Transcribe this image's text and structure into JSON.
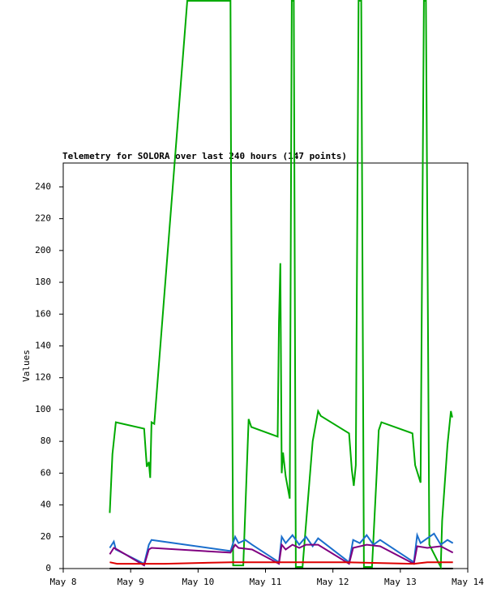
{
  "chart_data": {
    "type": "line",
    "title": "Telemetry for SOLORA over last 240 hours (147 points)",
    "ylabel": "Values",
    "xlim": [
      0,
      6
    ],
    "ylim": [
      0,
      255
    ],
    "xticks": [
      {
        "value": 0,
        "label": "May 8"
      },
      {
        "value": 1,
        "label": "May 9"
      },
      {
        "value": 2,
        "label": "May 10"
      },
      {
        "value": 3,
        "label": "May 11"
      },
      {
        "value": 4,
        "label": "May 12"
      },
      {
        "value": 5,
        "label": "May 13"
      },
      {
        "value": 6,
        "label": "May 14"
      }
    ],
    "yticks": [
      0,
      20,
      40,
      60,
      80,
      100,
      120,
      140,
      160,
      180,
      200,
      220,
      240
    ],
    "series": [
      {
        "color": "#000000",
        "x": [
          0.69,
          5.78
        ],
        "values": [
          0,
          0
        ]
      },
      {
        "color": "#00aa00",
        "x": [
          0.69,
          0.73,
          0.78,
          1.2,
          1.24,
          1.27,
          1.29,
          1.31,
          1.35,
          1.84,
          2.48,
          2.49,
          2.52,
          2.67,
          2.75,
          2.79,
          3.18,
          3.2,
          3.22,
          3.24,
          3.26,
          3.3,
          3.36,
          3.39,
          3.42,
          3.45,
          3.55,
          3.7,
          3.78,
          3.82,
          4.24,
          4.28,
          4.31,
          4.34,
          4.38,
          4.42,
          4.46,
          4.58,
          4.65,
          4.68,
          4.72,
          5.18,
          5.22,
          5.3,
          5.35,
          5.38,
          5.43,
          5.55,
          5.6,
          5.62,
          5.7,
          5.75,
          5.77
        ],
        "values": [
          35,
          72,
          92,
          88,
          64,
          67,
          57,
          92,
          91,
          357,
          357,
          240,
          2,
          2,
          94,
          89,
          83,
          155,
          192,
          60,
          73,
          58,
          44,
          357,
          357,
          1,
          1,
          80,
          99,
          96,
          85,
          62,
          52,
          65,
          357,
          357,
          1,
          1,
          60,
          87,
          92,
          85,
          65,
          54,
          357,
          357,
          15,
          5,
          1,
          30,
          78,
          99,
          95
        ]
      },
      {
        "color": "#1a6ecc",
        "x": [
          0.69,
          0.75,
          0.78,
          1.2,
          1.27,
          1.31,
          2.48,
          2.55,
          2.6,
          2.7,
          2.8,
          3.2,
          3.24,
          3.3,
          3.4,
          3.5,
          3.6,
          3.7,
          3.78,
          4.24,
          4.3,
          4.4,
          4.5,
          4.6,
          4.7,
          5.2,
          5.25,
          5.3,
          5.4,
          5.5,
          5.6,
          5.7,
          5.78
        ],
        "values": [
          13,
          17,
          12,
          3,
          15,
          18,
          11,
          20,
          16,
          18,
          15,
          4,
          20,
          16,
          21,
          15,
          20,
          14,
          19,
          4,
          18,
          16,
          21,
          15,
          18,
          4,
          21,
          16,
          19,
          22,
          15,
          18,
          16
        ]
      },
      {
        "color": "#800080",
        "x": [
          0.69,
          0.75,
          0.8,
          1.2,
          1.27,
          1.31,
          2.48,
          2.55,
          2.6,
          2.8,
          3.2,
          3.24,
          3.3,
          3.4,
          3.5,
          3.6,
          3.78,
          4.24,
          4.3,
          4.5,
          4.7,
          5.2,
          5.25,
          5.4,
          5.6,
          5.78
        ],
        "values": [
          9,
          13,
          12,
          2,
          12,
          13,
          10,
          15,
          13,
          12,
          3,
          15,
          12,
          15,
          13,
          15,
          15,
          3,
          13,
          15,
          14,
          3,
          14,
          13,
          14,
          10
        ]
      },
      {
        "color": "#dd0000",
        "x": [
          0.69,
          0.8,
          1.5,
          2.5,
          4.2,
          5.2,
          5.4,
          5.78
        ],
        "values": [
          4,
          3,
          3,
          4,
          4,
          3,
          4,
          4
        ]
      }
    ]
  }
}
